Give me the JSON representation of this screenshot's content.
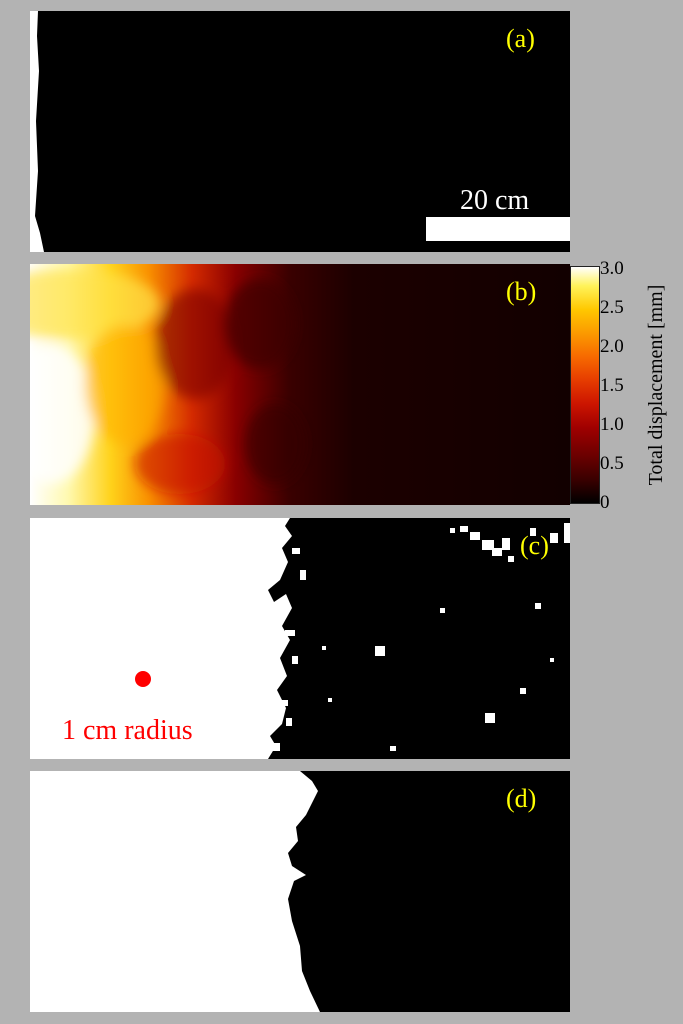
{
  "panels": {
    "a": {
      "label": "(a)"
    },
    "b": {
      "label": "(b)"
    },
    "c": {
      "label": "(c)"
    },
    "d": {
      "label": "(d)"
    }
  },
  "scalebar": {
    "text": "20 cm"
  },
  "colorbar": {
    "label": "Total displacement [mm]",
    "ticks": [
      "3.0",
      "2.5",
      "2.0",
      "1.5",
      "1.0",
      "0.5",
      "0"
    ]
  },
  "annotation": {
    "radius_text": "1 cm radius"
  },
  "colors": {
    "label_yellow": "#ffff00",
    "annotation_red": "#ff0000",
    "background_gray": "#b3b3b3"
  }
}
